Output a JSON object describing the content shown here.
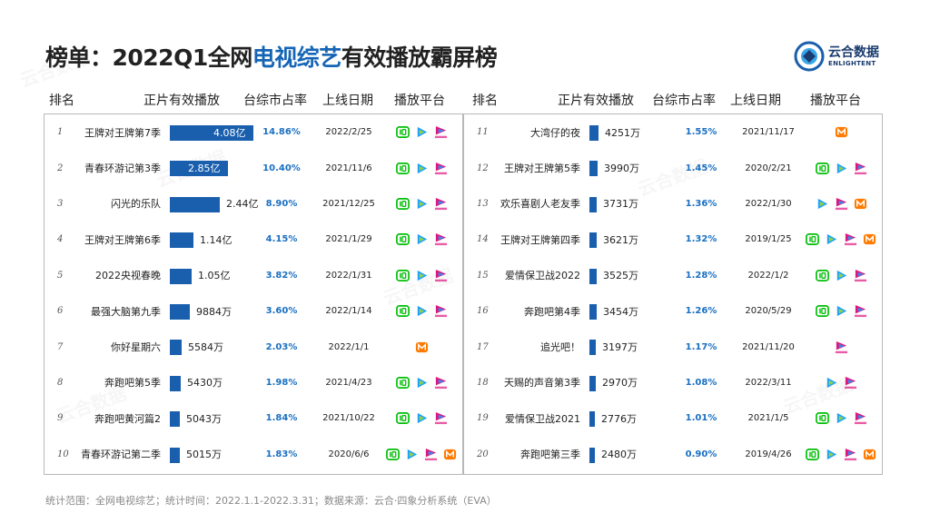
{
  "page": {
    "title_prefix": "榜单：2022Q1全网",
    "title_highlight": "电视综艺",
    "title_suffix": "有效播放霸屏榜",
    "footer": "统计范围：全网电视综艺；统计时间：2022.1.1-2022.3.31；数据来源：云合·四象分析系统（EVA）"
  },
  "logo": {
    "cn": "云合数据",
    "en": "ENLIGHTENT"
  },
  "headers": {
    "rank": "排名",
    "plays": "正片有效播放",
    "share": "台综市占率",
    "date": "上线日期",
    "platform": "播放平台"
  },
  "colors": {
    "title_highlight": "#1565b5",
    "bar": "#1a5fae",
    "share_text": "#1a6fc1",
    "iqiyi": "#00be06",
    "tencent": "#1aa0ff",
    "youku": "#e0157d",
    "mango": "#ff7a00"
  },
  "chart_data": {
    "type": "table",
    "title": "榜单：2022Q1全网电视综艺有效播放霸屏榜",
    "columns": [
      "排名",
      "正片有效播放",
      "台综市占率",
      "上线日期",
      "播放平台"
    ],
    "unit_note": "正片有效播放 in 亿 / 万",
    "rows": [
      {
        "rank": "1",
        "name": "王牌对王牌第7季",
        "plays_label": "4.08亿",
        "plays_value_wan": 40800,
        "share": "14.86%",
        "date": "2022/2/25",
        "platforms": [
          "iqiyi",
          "tencent",
          "youku"
        ]
      },
      {
        "rank": "2",
        "name": "青春环游记第3季",
        "plays_label": "2.85亿",
        "plays_value_wan": 28500,
        "share": "10.40%",
        "date": "2021/11/6",
        "platforms": [
          "iqiyi",
          "tencent",
          "youku"
        ]
      },
      {
        "rank": "3",
        "name": "闪光的乐队",
        "plays_label": "2.44亿",
        "plays_value_wan": 24400,
        "share": "8.90%",
        "date": "2021/12/25",
        "platforms": [
          "iqiyi",
          "tencent",
          "youku"
        ]
      },
      {
        "rank": "4",
        "name": "王牌对王牌第6季",
        "plays_label": "1.14亿",
        "plays_value_wan": 11400,
        "share": "4.15%",
        "date": "2021/1/29",
        "platforms": [
          "iqiyi",
          "tencent",
          "youku"
        ]
      },
      {
        "rank": "5",
        "name": "2022央视春晚",
        "plays_label": "1.05亿",
        "plays_value_wan": 10500,
        "share": "3.82%",
        "date": "2022/1/31",
        "platforms": [
          "iqiyi",
          "tencent",
          "youku"
        ]
      },
      {
        "rank": "6",
        "name": "最强大脑第九季",
        "plays_label": "9884万",
        "plays_value_wan": 9884,
        "share": "3.60%",
        "date": "2022/1/14",
        "platforms": [
          "iqiyi",
          "tencent",
          "youku"
        ]
      },
      {
        "rank": "7",
        "name": "你好星期六",
        "plays_label": "5584万",
        "plays_value_wan": 5584,
        "share": "2.03%",
        "date": "2022/1/1",
        "platforms": [
          "mango"
        ]
      },
      {
        "rank": "8",
        "name": "奔跑吧第5季",
        "plays_label": "5430万",
        "plays_value_wan": 5430,
        "share": "1.98%",
        "date": "2021/4/23",
        "platforms": [
          "iqiyi",
          "tencent",
          "youku"
        ]
      },
      {
        "rank": "9",
        "name": "奔跑吧黄河篇2",
        "plays_label": "5043万",
        "plays_value_wan": 5043,
        "share": "1.84%",
        "date": "2021/10/22",
        "platforms": [
          "iqiyi",
          "tencent",
          "youku"
        ]
      },
      {
        "rank": "10",
        "name": "青春环游记第二季",
        "plays_label": "5015万",
        "plays_value_wan": 5015,
        "share": "1.83%",
        "date": "2020/6/6",
        "platforms": [
          "iqiyi",
          "tencent",
          "youku",
          "mango"
        ]
      },
      {
        "rank": "11",
        "name": "大湾仔的夜",
        "plays_label": "4251万",
        "plays_value_wan": 4251,
        "share": "1.55%",
        "date": "2021/11/17",
        "platforms": [
          "mango"
        ]
      },
      {
        "rank": "12",
        "name": "王牌对王牌第5季",
        "plays_label": "3990万",
        "plays_value_wan": 3990,
        "share": "1.45%",
        "date": "2020/2/21",
        "platforms": [
          "iqiyi",
          "tencent",
          "youku"
        ]
      },
      {
        "rank": "13",
        "name": "欢乐喜剧人老友季",
        "plays_label": "3731万",
        "plays_value_wan": 3731,
        "share": "1.36%",
        "date": "2022/1/30",
        "platforms": [
          "tencent",
          "youku",
          "mango"
        ]
      },
      {
        "rank": "14",
        "name": "王牌对王牌第四季",
        "plays_label": "3621万",
        "plays_value_wan": 3621,
        "share": "1.32%",
        "date": "2019/1/25",
        "platforms": [
          "iqiyi",
          "tencent",
          "youku",
          "mango"
        ]
      },
      {
        "rank": "15",
        "name": "爱情保卫战2022",
        "plays_label": "3525万",
        "plays_value_wan": 3525,
        "share": "1.28%",
        "date": "2022/1/2",
        "platforms": [
          "iqiyi",
          "tencent",
          "youku"
        ]
      },
      {
        "rank": "16",
        "name": "奔跑吧第4季",
        "plays_label": "3454万",
        "plays_value_wan": 3454,
        "share": "1.26%",
        "date": "2020/5/29",
        "platforms": [
          "iqiyi",
          "tencent",
          "youku"
        ]
      },
      {
        "rank": "17",
        "name": "追光吧！",
        "plays_label": "3197万",
        "plays_value_wan": 3197,
        "share": "1.17%",
        "date": "2021/11/20",
        "platforms": [
          "youku"
        ]
      },
      {
        "rank": "18",
        "name": "天赐的声音第3季",
        "plays_label": "2970万",
        "plays_value_wan": 2970,
        "share": "1.08%",
        "date": "2022/3/11",
        "platforms": [
          "tencent",
          "youku"
        ]
      },
      {
        "rank": "19",
        "name": "爱情保卫战2021",
        "plays_label": "2776万",
        "plays_value_wan": 2776,
        "share": "1.01%",
        "date": "2021/1/5",
        "platforms": [
          "iqiyi",
          "tencent",
          "youku"
        ]
      },
      {
        "rank": "20",
        "name": "奔跑吧第三季",
        "plays_label": "2480万",
        "plays_value_wan": 2480,
        "share": "0.90%",
        "date": "2019/4/26",
        "platforms": [
          "iqiyi",
          "tencent",
          "youku",
          "mango"
        ]
      }
    ]
  }
}
